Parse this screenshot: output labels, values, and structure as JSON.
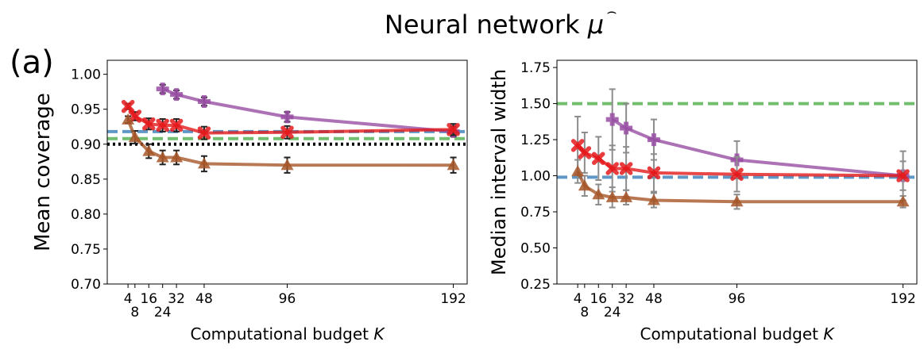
{
  "figure": {
    "title": "Neural network ",
    "title_symbol": "μ",
    "title_hat": "⌢",
    "panel_label": "(a)"
  },
  "chart_data": [
    {
      "type": "line",
      "xlabel": "Computational budget ",
      "xlabel_symbol": "K",
      "ylabel": "Mean coverage",
      "xlim": [
        -8,
        200
      ],
      "ylim": [
        0.7,
        1.02
      ],
      "x_ticks": [
        4,
        8,
        16,
        24,
        32,
        48,
        96,
        192
      ],
      "x_tick_labels": [
        "4",
        "8",
        "16",
        "24",
        "32",
        "48",
        "96",
        "192"
      ],
      "y_ticks": [
        0.7,
        0.75,
        0.8,
        0.85,
        0.9,
        0.95,
        1.0
      ],
      "y_tick_labels": [
        "0.70",
        "0.75",
        "0.80",
        "0.85",
        "0.90",
        "0.95",
        "1.00"
      ],
      "grid": false,
      "series": [
        {
          "color": "#984ea3",
          "marker": "plus",
          "x": [
            24,
            32,
            48,
            96,
            192
          ],
          "y": [
            0.979,
            0.971,
            0.961,
            0.939,
            0.918
          ],
          "err": [
            0.006,
            0.006,
            0.006,
            0.007,
            0.007
          ]
        },
        {
          "color": "#e41a1c",
          "marker": "x",
          "x": [
            4,
            8,
            16,
            24,
            32,
            48,
            96,
            192
          ],
          "y": [
            0.954,
            0.94,
            0.929,
            0.927,
            0.927,
            0.916,
            0.917,
            0.921
          ],
          "err": [
            0.004,
            0.006,
            0.008,
            0.009,
            0.009,
            0.009,
            0.009,
            0.008
          ]
        },
        {
          "color": "#a65628",
          "marker": "triangle",
          "x": [
            4,
            8,
            16,
            24,
            32,
            48,
            96,
            192
          ],
          "y": [
            0.935,
            0.91,
            0.89,
            0.881,
            0.881,
            0.872,
            0.87,
            0.87
          ],
          "err": [
            0.005,
            0.009,
            0.01,
            0.01,
            0.01,
            0.011,
            0.011,
            0.011
          ]
        }
      ],
      "reference_lines": [
        {
          "y": 0.918,
          "color": "#377eb8",
          "style": "dashed"
        },
        {
          "y": 0.908,
          "color": "#4daf4a",
          "style": "dashed"
        },
        {
          "y": 0.9,
          "color": "#000000",
          "style": "dotted"
        }
      ]
    },
    {
      "type": "line",
      "xlabel": "Computational budget ",
      "xlabel_symbol": "K",
      "ylabel": "Median interval width",
      "xlim": [
        -8,
        200
      ],
      "ylim": [
        0.25,
        1.8
      ],
      "x_ticks": [
        4,
        8,
        16,
        24,
        32,
        48,
        96,
        192
      ],
      "x_tick_labels": [
        "4",
        "8",
        "16",
        "24",
        "32",
        "48",
        "96",
        "192"
      ],
      "y_ticks": [
        0.25,
        0.5,
        0.75,
        1.0,
        1.25,
        1.5,
        1.75
      ],
      "y_tick_labels": [
        "0.25",
        "0.50",
        "0.75",
        "1.00",
        "1.25",
        "1.50",
        "1.75"
      ],
      "grid": false,
      "series": [
        {
          "color": "#984ea3",
          "marker": "plus",
          "x": [
            24,
            32,
            48,
            96,
            192
          ],
          "y": [
            1.39,
            1.33,
            1.25,
            1.11,
            1.0
          ],
          "err": [
            0.21,
            0.17,
            0.14,
            0.13,
            0.17
          ]
        },
        {
          "color": "#e41a1c",
          "marker": "x",
          "x": [
            4,
            8,
            16,
            24,
            32,
            48,
            96,
            192
          ],
          "y": [
            1.21,
            1.16,
            1.12,
            1.05,
            1.05,
            1.02,
            1.01,
            1.0
          ],
          "err": [
            0.2,
            0.14,
            0.15,
            0.16,
            0.15,
            0.13,
            0.12,
            0.1
          ]
        },
        {
          "color": "#a65628",
          "marker": "triangle",
          "x": [
            4,
            8,
            16,
            24,
            32,
            48,
            96,
            192
          ],
          "y": [
            1.03,
            0.93,
            0.87,
            0.85,
            0.85,
            0.83,
            0.82,
            0.82
          ],
          "err": [
            0.08,
            0.07,
            0.07,
            0.07,
            0.05,
            0.05,
            0.05,
            0.04
          ]
        }
      ],
      "reference_lines": [
        {
          "y": 0.99,
          "color": "#377eb8",
          "style": "dashed"
        },
        {
          "y": 1.5,
          "color": "#4daf4a",
          "style": "dashed"
        }
      ]
    }
  ]
}
